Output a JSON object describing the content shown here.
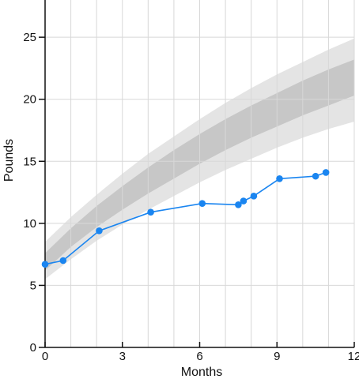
{
  "chart_data": {
    "type": "line",
    "xlabel": "Months",
    "ylabel": "Pounds",
    "xlim": [
      0,
      12
    ],
    "ylim": [
      0,
      28
    ],
    "xticks": [
      0,
      3,
      6,
      9,
      12
    ],
    "yticks": [
      0,
      5,
      10,
      15,
      20,
      25
    ],
    "grid": true,
    "series": [
      {
        "x": [
          0.0,
          0.7,
          2.1,
          4.1,
          6.1,
          7.5,
          7.7,
          8.1,
          9.1,
          10.5,
          10.9
        ],
        "y": [
          6.7,
          7.0,
          9.4,
          10.9,
          11.6,
          11.5,
          11.8,
          12.2,
          13.6,
          13.8,
          14.1
        ]
      }
    ],
    "bands": {
      "x": [
        0,
        1,
        2,
        3,
        4,
        5,
        6,
        7,
        8,
        9,
        10,
        11,
        12
      ],
      "outer_upper": [
        8.5,
        10.5,
        12.3,
        14.0,
        15.6,
        17.0,
        18.4,
        19.7,
        20.9,
        22.0,
        23.0,
        24.0,
        24.9
      ],
      "inner_upper": [
        7.6,
        9.6,
        11.4,
        13.0,
        14.5,
        15.9,
        17.2,
        18.4,
        19.5,
        20.5,
        21.5,
        22.4,
        23.2
      ],
      "inner_lower": [
        6.2,
        8.1,
        9.7,
        11.1,
        12.4,
        13.6,
        14.8,
        15.9,
        16.9,
        17.8,
        18.7,
        19.5,
        20.3
      ],
      "outer_lower": [
        5.5,
        7.1,
        8.6,
        9.9,
        11.1,
        12.2,
        13.3,
        14.3,
        15.2,
        16.1,
        16.9,
        17.6,
        18.2
      ]
    },
    "colors": {
      "series": "#1a85f0",
      "outer_band": "#e4e4e4",
      "inner_band": "#c7c7c7",
      "grid": "#d8d8d8",
      "axis": "#111111"
    }
  }
}
